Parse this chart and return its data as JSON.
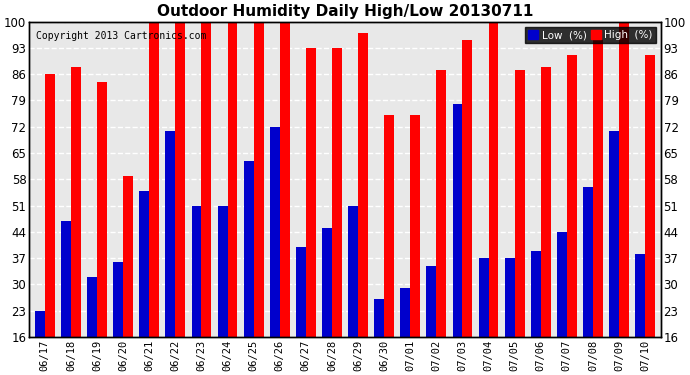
{
  "title": "Outdoor Humidity Daily High/Low 20130711",
  "copyright": "Copyright 2013 Cartronics.com",
  "dates": [
    "06/17",
    "06/18",
    "06/19",
    "06/20",
    "06/21",
    "06/22",
    "06/23",
    "06/24",
    "06/25",
    "06/26",
    "06/27",
    "06/28",
    "06/29",
    "06/30",
    "07/01",
    "07/02",
    "07/03",
    "07/04",
    "07/05",
    "07/06",
    "07/07",
    "07/08",
    "07/09",
    "07/10"
  ],
  "high": [
    86,
    88,
    84,
    59,
    100,
    100,
    100,
    100,
    100,
    100,
    93,
    93,
    97,
    75,
    75,
    87,
    95,
    100,
    87,
    88,
    91,
    95,
    100,
    91
  ],
  "low": [
    23,
    47,
    32,
    36,
    55,
    71,
    51,
    51,
    63,
    72,
    40,
    45,
    51,
    26,
    29,
    35,
    78,
    37,
    37,
    39,
    44,
    56,
    71,
    38
  ],
  "high_color": "#ff0000",
  "low_color": "#0000cc",
  "bg_color": "#ffffff",
  "plot_bg_color": "#e8e8e8",
  "grid_color": "#ffffff",
  "ylim_min": 16,
  "ylim_max": 100,
  "yticks": [
    16,
    23,
    30,
    37,
    44,
    51,
    58,
    65,
    72,
    79,
    86,
    93,
    100
  ],
  "bar_width": 0.38,
  "legend_low_label": "Low  (%)",
  "legend_high_label": "High  (%)"
}
